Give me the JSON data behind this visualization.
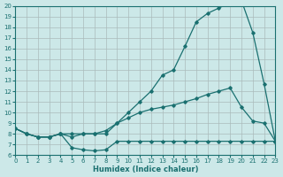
{
  "xlabel": "Humidex (Indice chaleur)",
  "bg_color": "#cce8e8",
  "grid_color": "#aabbbb",
  "line_color": "#1a7070",
  "xlim": [
    0,
    23
  ],
  "ylim": [
    6,
    20
  ],
  "xticks": [
    0,
    1,
    2,
    3,
    4,
    5,
    6,
    7,
    8,
    9,
    10,
    11,
    12,
    13,
    14,
    15,
    16,
    17,
    18,
    19,
    20,
    21,
    22,
    23
  ],
  "yticks": [
    6,
    7,
    8,
    9,
    10,
    11,
    12,
    13,
    14,
    15,
    16,
    17,
    18,
    19,
    20
  ],
  "curve_top_x": [
    0,
    1,
    2,
    3,
    4,
    5,
    6,
    7,
    8,
    9,
    10,
    11,
    12,
    13,
    14,
    15,
    16,
    17,
    18,
    19,
    20,
    21,
    22,
    23
  ],
  "curve_top_y": [
    8.5,
    8.0,
    7.7,
    7.7,
    8.0,
    7.7,
    8.0,
    8.0,
    8.0,
    9.0,
    10.0,
    11.0,
    12.0,
    13.5,
    14.0,
    16.2,
    18.5,
    19.3,
    19.8,
    20.3,
    20.5,
    17.5,
    12.7,
    7.3
  ],
  "curve_mid_x": [
    0,
    1,
    2,
    3,
    4,
    5,
    6,
    7,
    8,
    9,
    10,
    11,
    12,
    13,
    14,
    15,
    16,
    17,
    18,
    19,
    20,
    21,
    22,
    23
  ],
  "curve_mid_y": [
    8.5,
    8.0,
    7.7,
    7.7,
    8.0,
    8.0,
    8.0,
    8.0,
    8.3,
    9.0,
    9.5,
    10.0,
    10.3,
    10.5,
    10.7,
    11.0,
    11.3,
    11.7,
    12.0,
    12.3,
    10.5,
    9.2,
    9.0,
    7.3
  ],
  "curve_bot_x": [
    0,
    1,
    2,
    3,
    4,
    5,
    6,
    7,
    8,
    9,
    10,
    11,
    12,
    13,
    14,
    15,
    16,
    17,
    18,
    19,
    20,
    21,
    22,
    23
  ],
  "curve_bot_y": [
    8.5,
    8.0,
    7.7,
    7.7,
    8.0,
    6.7,
    6.5,
    6.4,
    6.5,
    7.3,
    7.3,
    7.3,
    7.3,
    7.3,
    7.3,
    7.3,
    7.3,
    7.3,
    7.3,
    7.3,
    7.3,
    7.3,
    7.3,
    7.3
  ]
}
